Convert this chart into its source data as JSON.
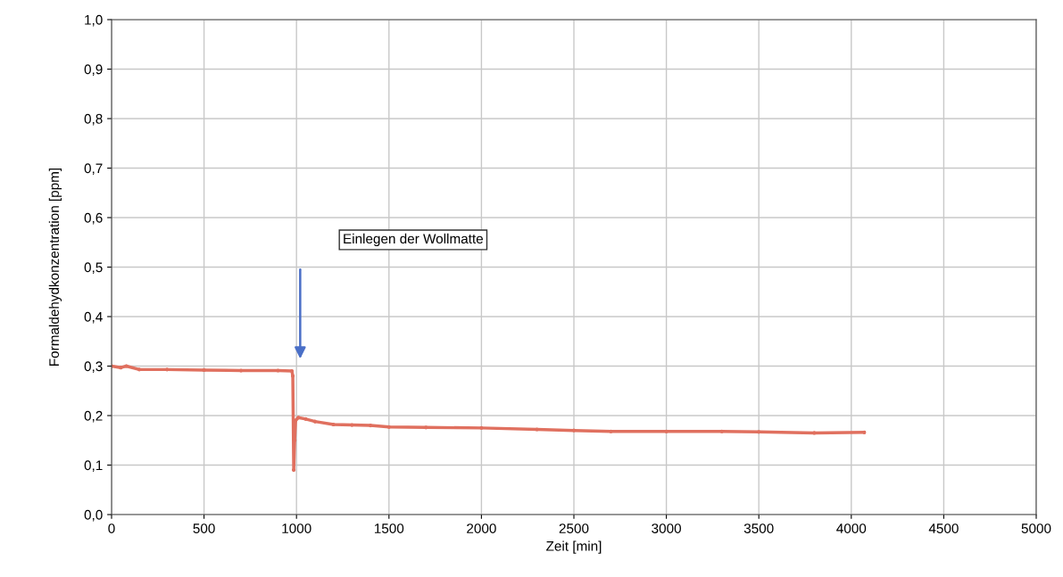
{
  "chart_data": {
    "type": "line",
    "xlabel": "Zeit [min]",
    "ylabel": "Formaldehydkonzentration [ppm]",
    "x": [
      0,
      50,
      80,
      150,
      300,
      500,
      700,
      900,
      975,
      980,
      985,
      990,
      995,
      1010,
      1050,
      1100,
      1200,
      1300,
      1400,
      1500,
      1700,
      2000,
      2300,
      2500,
      2700,
      3000,
      3300,
      3500,
      3800,
      4070
    ],
    "series": [
      {
        "color": "#e0705f",
        "values": [
          0.3,
          0.297,
          0.3,
          0.293,
          0.293,
          0.292,
          0.291,
          0.291,
          0.29,
          0.28,
          0.09,
          0.15,
          0.19,
          0.196,
          0.193,
          0.188,
          0.182,
          0.181,
          0.18,
          0.177,
          0.176,
          0.175,
          0.172,
          0.17,
          0.168,
          0.168,
          0.168,
          0.167,
          0.165,
          0.166
        ]
      }
    ],
    "marker": "circle",
    "line_style": "solid",
    "grid": true,
    "legend": false,
    "xlim": [
      0,
      5000
    ],
    "xticks": [
      0,
      500,
      1000,
      1500,
      2000,
      2500,
      3000,
      3500,
      4000,
      4500,
      5000
    ],
    "ylim": [
      0,
      1.0
    ],
    "yticks": [
      {
        "value": 0,
        "label": "0,0"
      },
      {
        "value": 0.1,
        "label": "0,1"
      },
      {
        "value": 0.2,
        "label": "0,2"
      },
      {
        "value": 0.3,
        "label": "0,3"
      },
      {
        "value": 0.4,
        "label": "0,4"
      },
      {
        "value": 0.5,
        "label": "0,5"
      },
      {
        "value": 0.6,
        "label": "0,6"
      },
      {
        "value": 0.7,
        "label": "0,7"
      },
      {
        "value": 0.8,
        "label": "0,8"
      },
      {
        "value": 0.9,
        "label": "0,9"
      },
      {
        "value": 1.0,
        "label": "1,0"
      }
    ],
    "annotations": [
      "Einlegen der Wollmatte"
    ]
  }
}
